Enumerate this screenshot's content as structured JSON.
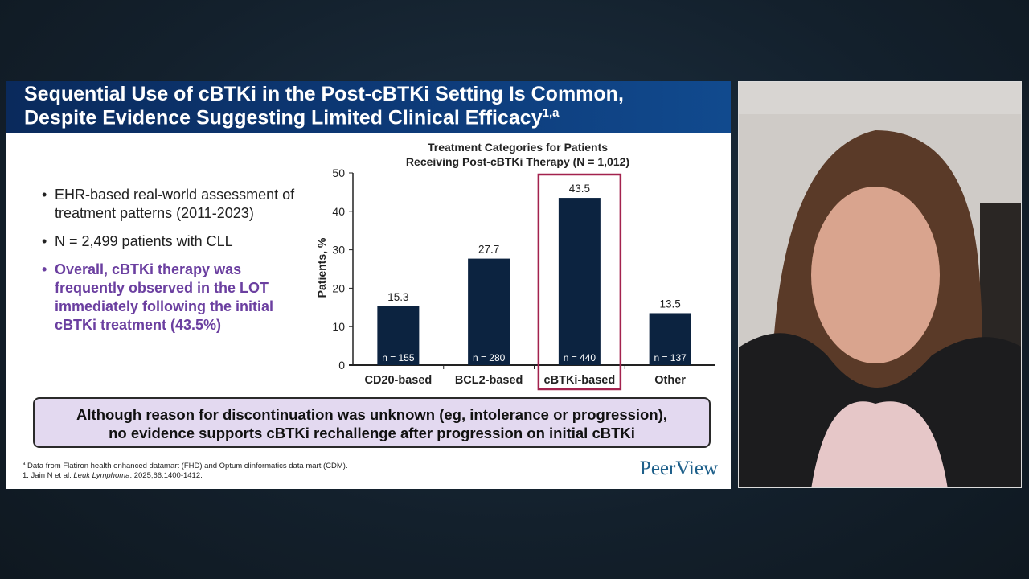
{
  "slide": {
    "title_line1": "Sequential Use of cBTKi in the Post-cBTKi Setting Is Common,",
    "title_line2": "Despite Evidence Suggesting Limited Clinical Efficacy",
    "title_sup": "1,a",
    "bullets": [
      {
        "text": "EHR-based real-world assessment of treatment patterns (2011-2023)",
        "highlight": false
      },
      {
        "text": "N = 2,499 patients with CLL",
        "highlight": false
      },
      {
        "text": "Overall, cBTKi therapy was frequently observed in the LOT immediately following the initial cBTKi treatment (43.5%)",
        "highlight": true
      }
    ],
    "callout_line1": "Although reason for discontinuation was unknown (eg, intolerance or progression),",
    "callout_line2": "no evidence supports cBTKi rechallenge after progression on initial cBTKi",
    "footnote_a_marker": "a",
    "footnote_a": "Data from Flatiron health enhanced datamart (FHD) and Optum clinformatics data mart (CDM).",
    "ref_prefix": "1. Jain N et al. ",
    "ref_journal": "Leuk Lymphoma",
    "ref_suffix": ". 2025;66:1400-1412.",
    "logo": "PeerView",
    "colors": {
      "title_bar": "#0d3a78",
      "bar": "#0c2340",
      "highlight_box": "#a3224e",
      "highlight_text": "#6b3fa0",
      "callout_bg": "#e3d9f0"
    }
  },
  "chart_data": {
    "type": "bar",
    "title_line1": "Treatment Categories for Patients",
    "title_line2": "Receiving Post-cBTKi Therapy (N = 1,012)",
    "xlabel": "",
    "ylabel": "Patients, %",
    "ylim": [
      0,
      50
    ],
    "yticks": [
      0,
      10,
      20,
      30,
      40,
      50
    ],
    "categories": [
      "CD20-based",
      "BCL2-based",
      "cBTKi-based",
      "Other"
    ],
    "values": [
      15.3,
      27.7,
      43.5,
      13.5
    ],
    "value_labels": [
      "15.3",
      "27.7",
      "43.5",
      "13.5"
    ],
    "n_labels": [
      "n = 155",
      "n = 280",
      "n = 440",
      "n = 137"
    ],
    "highlighted_category": "cBTKi-based",
    "grid": false,
    "legend": "none"
  },
  "webcam": {
    "content": "presenter video"
  }
}
